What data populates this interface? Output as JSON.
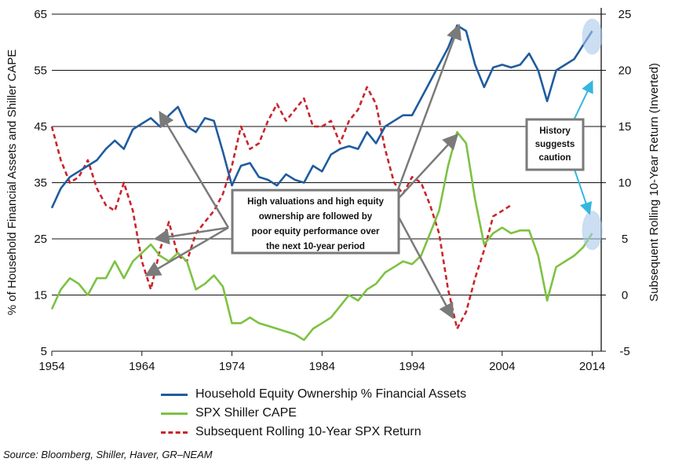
{
  "chart_data": {
    "type": "line",
    "title": "",
    "xlabel": "",
    "ylabel": "% of Household Financial Assets and Shiller CAPE",
    "y2label": "Subsequent Rolling 10-Year Return (Inverted)",
    "xlim": [
      1954,
      2015
    ],
    "ylim": [
      5,
      65
    ],
    "y2lim": [
      -5,
      25
    ],
    "x_ticks": [
      "1954",
      "1964",
      "1974",
      "1984",
      "1994",
      "2004",
      "2014"
    ],
    "y_ticks": [
      "5",
      "15",
      "25",
      "35",
      "45",
      "55",
      "65"
    ],
    "y2_ticks": [
      "-5",
      "0",
      "5",
      "10",
      "15",
      "20",
      "25"
    ],
    "series": [
      {
        "name": "Household Equity Ownership % Financial Assets",
        "axis": "left",
        "color": "#1f5c9e",
        "style": "solid",
        "points": [
          [
            1954,
            30.5
          ],
          [
            1955,
            34
          ],
          [
            1956,
            36
          ],
          [
            1957,
            37
          ],
          [
            1958,
            38
          ],
          [
            1959,
            39
          ],
          [
            1960,
            41
          ],
          [
            1961,
            42.5
          ],
          [
            1962,
            41
          ],
          [
            1963,
            44.5
          ],
          [
            1964,
            45.5
          ],
          [
            1965,
            46.5
          ],
          [
            1966,
            45
          ],
          [
            1967,
            47
          ],
          [
            1968,
            48.5
          ],
          [
            1969,
            45
          ],
          [
            1970,
            44
          ],
          [
            1971,
            46.5
          ],
          [
            1972,
            46
          ],
          [
            1973,
            40.5
          ],
          [
            1974,
            34.5
          ],
          [
            1975,
            38
          ],
          [
            1976,
            38.5
          ],
          [
            1977,
            36
          ],
          [
            1978,
            35.5
          ],
          [
            1979,
            34.5
          ],
          [
            1980,
            36.5
          ],
          [
            1981,
            35.5
          ],
          [
            1982,
            35
          ],
          [
            1983,
            38
          ],
          [
            1984,
            37
          ],
          [
            1985,
            40
          ],
          [
            1986,
            41
          ],
          [
            1987,
            41.5
          ],
          [
            1988,
            41
          ],
          [
            1989,
            44
          ],
          [
            1990,
            42
          ],
          [
            1991,
            45
          ],
          [
            1992,
            46
          ],
          [
            1993,
            47
          ],
          [
            1994,
            47
          ],
          [
            1995,
            50
          ],
          [
            1996,
            53
          ],
          [
            1997,
            56
          ],
          [
            1998,
            59
          ],
          [
            1999,
            63
          ],
          [
            2000,
            62
          ],
          [
            2001,
            56
          ],
          [
            2002,
            52
          ],
          [
            2003,
            55.5
          ],
          [
            2004,
            56
          ],
          [
            2005,
            55.5
          ],
          [
            2006,
            56
          ],
          [
            2007,
            58
          ],
          [
            2008,
            55
          ],
          [
            2009,
            49.5
          ],
          [
            2010,
            55
          ],
          [
            2011,
            56
          ],
          [
            2012,
            57
          ],
          [
            2013,
            59.5
          ],
          [
            2014,
            62
          ]
        ]
      },
      {
        "name": "SPX Shiller CAPE",
        "axis": "left",
        "color": "#7dc242",
        "style": "solid",
        "points": [
          [
            1954,
            12.5
          ],
          [
            1955,
            16
          ],
          [
            1956,
            18
          ],
          [
            1957,
            17
          ],
          [
            1958,
            15
          ],
          [
            1959,
            18
          ],
          [
            1960,
            18
          ],
          [
            1961,
            21
          ],
          [
            1962,
            18
          ],
          [
            1963,
            21
          ],
          [
            1964,
            22.5
          ],
          [
            1965,
            24
          ],
          [
            1966,
            22
          ],
          [
            1967,
            21
          ],
          [
            1968,
            22.5
          ],
          [
            1969,
            21
          ],
          [
            1970,
            16
          ],
          [
            1971,
            17
          ],
          [
            1972,
            18.5
          ],
          [
            1973,
            16.5
          ],
          [
            1974,
            10
          ],
          [
            1975,
            10
          ],
          [
            1976,
            11
          ],
          [
            1977,
            10
          ],
          [
            1978,
            9.5
          ],
          [
            1979,
            9
          ],
          [
            1980,
            8.5
          ],
          [
            1981,
            8
          ],
          [
            1982,
            7
          ],
          [
            1983,
            9
          ],
          [
            1984,
            10
          ],
          [
            1985,
            11
          ],
          [
            1986,
            13
          ],
          [
            1987,
            15
          ],
          [
            1988,
            14
          ],
          [
            1989,
            16
          ],
          [
            1990,
            17
          ],
          [
            1991,
            19
          ],
          [
            1992,
            20
          ],
          [
            1993,
            21
          ],
          [
            1994,
            20.5
          ],
          [
            1995,
            22
          ],
          [
            1996,
            26
          ],
          [
            1997,
            30
          ],
          [
            1998,
            38
          ],
          [
            1999,
            44
          ],
          [
            2000,
            42
          ],
          [
            2001,
            32
          ],
          [
            2002,
            24
          ],
          [
            2003,
            26
          ],
          [
            2004,
            27
          ],
          [
            2005,
            26
          ],
          [
            2006,
            26.5
          ],
          [
            2007,
            26.5
          ],
          [
            2008,
            22
          ],
          [
            2009,
            14
          ],
          [
            2010,
            20
          ],
          [
            2011,
            21
          ],
          [
            2012,
            22
          ],
          [
            2013,
            23.5
          ],
          [
            2014,
            26
          ]
        ]
      },
      {
        "name": "Subsequent Rolling 10-Year SPX Return",
        "axis": "right",
        "color": "#c9252c",
        "style": "dashed",
        "points": [
          [
            1954,
            15
          ],
          [
            1955,
            12
          ],
          [
            1956,
            10
          ],
          [
            1957,
            10.5
          ],
          [
            1958,
            12
          ],
          [
            1959,
            9.5
          ],
          [
            1960,
            8
          ],
          [
            1961,
            7.5
          ],
          [
            1962,
            10
          ],
          [
            1963,
            7.5
          ],
          [
            1964,
            3
          ],
          [
            1965,
            0.5
          ],
          [
            1966,
            4
          ],
          [
            1967,
            6.5
          ],
          [
            1968,
            3.5
          ],
          [
            1969,
            3
          ],
          [
            1970,
            5.5
          ],
          [
            1971,
            6.5
          ],
          [
            1972,
            7.5
          ],
          [
            1973,
            9
          ],
          [
            1974,
            11.5
          ],
          [
            1975,
            15
          ],
          [
            1976,
            13
          ],
          [
            1977,
            13.5
          ],
          [
            1978,
            15.5
          ],
          [
            1979,
            17
          ],
          [
            1980,
            15.5
          ],
          [
            1981,
            16.5
          ],
          [
            1982,
            17.5
          ],
          [
            1983,
            15
          ],
          [
            1984,
            15
          ],
          [
            1985,
            15.5
          ],
          [
            1986,
            13.5
          ],
          [
            1987,
            15.5
          ],
          [
            1988,
            16.5
          ],
          [
            1989,
            18.5
          ],
          [
            1990,
            17
          ],
          [
            1991,
            13
          ],
          [
            1992,
            10
          ],
          [
            1993,
            9
          ],
          [
            1994,
            10.5
          ],
          [
            1995,
            10
          ],
          [
            1996,
            8
          ],
          [
            1997,
            5.5
          ],
          [
            1998,
            0.5
          ],
          [
            1999,
            -3
          ],
          [
            2000,
            -1.5
          ],
          [
            2001,
            1.5
          ],
          [
            2002,
            4
          ],
          [
            2003,
            7
          ],
          [
            2004,
            7.5
          ],
          [
            2005,
            8
          ]
        ]
      }
    ],
    "annotations": [
      {
        "id": "center",
        "lines": [
          "High valuations and high equity",
          "ownership are followed by",
          "poor equity performance over",
          "the next 10-year period"
        ]
      },
      {
        "id": "right",
        "lines": [
          "History",
          "suggests",
          "caution"
        ]
      }
    ],
    "legend": {
      "position": "bottom",
      "items": [
        {
          "label": "Household Equity Ownership % Financial Assets",
          "color": "#1f5c9e",
          "style": "solid"
        },
        {
          "label": "SPX Shiller CAPE",
          "color": "#7dc242",
          "style": "solid"
        },
        {
          "label": "Subsequent Rolling 10-Year SPX Return",
          "color": "#c9252c",
          "style": "dashed"
        }
      ]
    }
  },
  "source": "Source: Bloomberg, Shiller, Haver, GR–NEAM"
}
